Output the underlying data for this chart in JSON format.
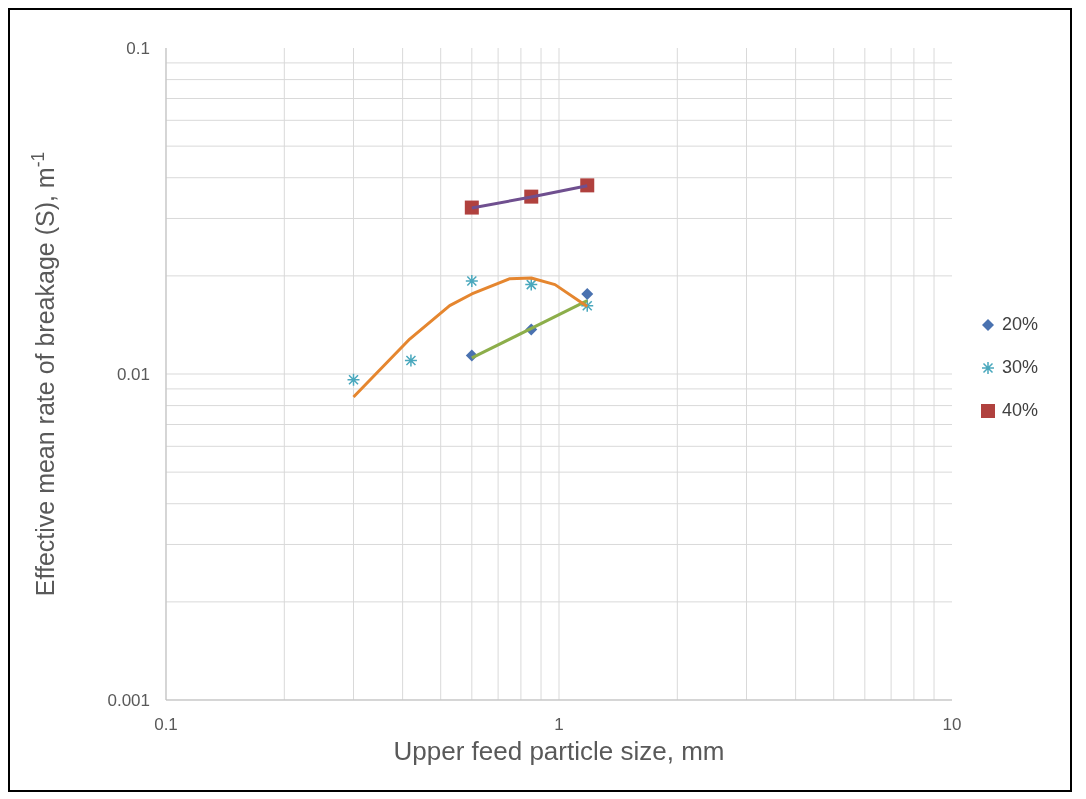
{
  "chart_data": {
    "type": "scatter",
    "xlabel": "Upper feed particle size, mm",
    "ylabel": "Effective mean rate of breakage (S), m$^{-1}$",
    "log": "xy",
    "xlim": [
      0.1,
      10
    ],
    "xticks": [
      0.1,
      1,
      10
    ],
    "ylim": [
      0.001,
      0.1
    ],
    "yticks": [
      0.001,
      0.01,
      0.1
    ],
    "grid": true,
    "legend": "right",
    "series": [
      {
        "name": "20%",
        "type": "scatter",
        "marker": "diamond",
        "color": "#4a72b0",
        "x": [
          0.6,
          0.85,
          1.18
        ],
        "values": [
          0.0114,
          0.0137,
          0.0176
        ]
      },
      {
        "name": "30%",
        "type": "scatter",
        "marker": "cross",
        "color": "#4aa8bd",
        "x": [
          0.3,
          0.42,
          0.6,
          0.85,
          1.18
        ],
        "values": [
          0.0096,
          0.011,
          0.0193,
          0.0188,
          0.0162
        ]
      },
      {
        "name": "40%",
        "type": "scatter",
        "marker": "square",
        "color": "#b0413e",
        "x": [
          0.6,
          0.85,
          1.18
        ],
        "values": [
          0.0324,
          0.035,
          0.0379
        ]
      },
      {
        "type": "line",
        "marker": "none",
        "color": "#8cae4a",
        "x": [
          0.6,
          1.18
        ],
        "values": [
          0.0112,
          0.0168
        ]
      },
      {
        "type": "line",
        "marker": "none",
        "color": "#e5862f",
        "x": [
          0.3,
          0.417,
          0.527,
          0.6,
          0.75,
          0.85,
          0.977,
          1.18
        ],
        "values": [
          0.0085,
          0.0128,
          0.0162,
          0.0176,
          0.0196,
          0.0197,
          0.0188,
          0.0161
        ]
      },
      {
        "type": "line",
        "marker": "none",
        "color": "#6f4f8f",
        "x": [
          0.6,
          0.85,
          1.18
        ],
        "values": [
          0.0323,
          0.0349,
          0.0378
        ]
      }
    ]
  }
}
